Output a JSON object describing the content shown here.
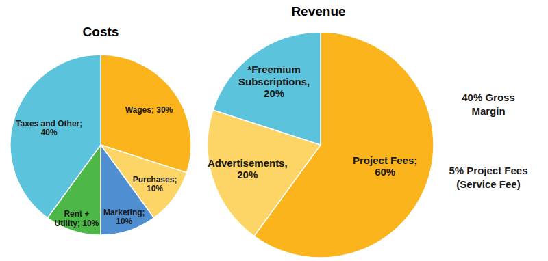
{
  "chart_data": [
    {
      "type": "pie",
      "title": "Costs",
      "categories": [
        "Wages",
        "Purchases",
        "Marketing",
        "Rent + Utility",
        "Taxes and Other"
      ],
      "values": [
        30,
        10,
        10,
        10,
        40
      ],
      "value_labels": [
        "Wages; 30%",
        "Purchases; 10%",
        "Marketing; 10%",
        "Rent + Utility; 10%",
        "Taxes and Other; 40%"
      ],
      "colors": [
        "#fbb41c",
        "#fdd466",
        "#4f8fd1",
        "#4db848",
        "#5bc4dc"
      ],
      "data_labels": true
    },
    {
      "type": "pie",
      "title": "Revenue",
      "categories": [
        "Project Fees",
        "Advertisements",
        "*Freemium Subscriptions"
      ],
      "values": [
        60,
        20,
        20
      ],
      "value_labels": [
        "Project Fees; 60%",
        "Advertisements, 20%",
        "*Freemium Subscriptions, 20%"
      ],
      "colors": [
        "#fbb41c",
        "#fdd466",
        "#5bc4dc"
      ],
      "data_labels": true,
      "annotations": [
        "40% Gross Margin",
        "5% Project Fees (Service Fee)"
      ]
    }
  ]
}
